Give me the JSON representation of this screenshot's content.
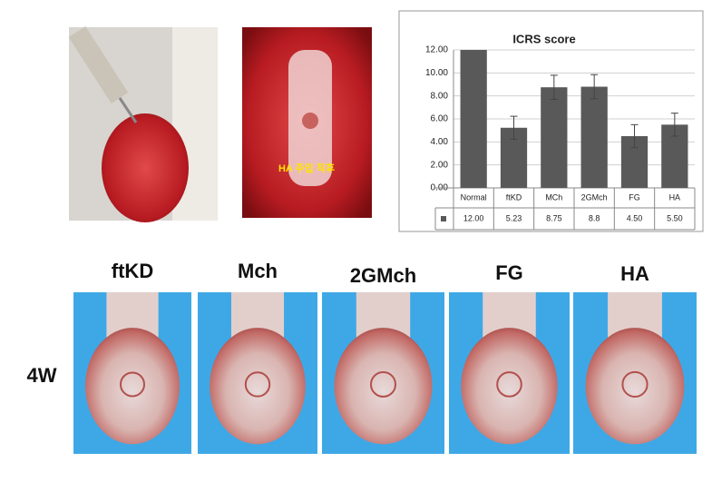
{
  "chart_data": {
    "type": "bar",
    "title": "ICRS score",
    "categories": [
      "Normal",
      "ftKD",
      "MCh",
      "2GMch",
      "FG",
      "HA"
    ],
    "values": [
      12,
      5.23,
      8.75,
      8.8,
      4.5,
      5.5
    ],
    "value_labels": [
      "12.00",
      "5.23",
      "8.75",
      "8.8",
      "4.50",
      "5.50"
    ],
    "errors": [
      null,
      1.0,
      1.05,
      1.05,
      1.0,
      1.0
    ],
    "color": "#595959",
    "ylim": [
      0,
      12
    ],
    "yticks": [
      {
        "value": 0,
        "label": "0.00"
      },
      {
        "value": 2,
        "label": "2.00"
      },
      {
        "value": 4,
        "label": "4.00"
      },
      {
        "value": 6,
        "label": "6.00"
      },
      {
        "value": 8,
        "label": "8.00"
      },
      {
        "value": 10,
        "label": "10.00"
      },
      {
        "value": 12,
        "label": "12.00"
      }
    ],
    "grid": true
  },
  "figure": {
    "inset_label": "HA 주입 직후",
    "panel_labels": [
      "ftKD",
      "Mch",
      "2GMch",
      "FG",
      "HA"
    ],
    "row_label": "4W"
  }
}
